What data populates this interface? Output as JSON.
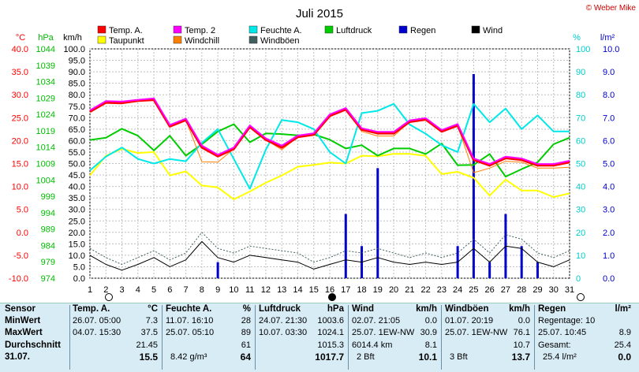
{
  "title": "Juli 2015",
  "copyright": "© Weber Mike",
  "legend": [
    {
      "name": "Temp. A.",
      "color": "#ff0000"
    },
    {
      "name": "Temp. 2",
      "color": "#ff00ff"
    },
    {
      "name": "Feuchte A.",
      "color": "#00e8e8"
    },
    {
      "name": "Luftdruck",
      "color": "#00cc00"
    },
    {
      "name": "Regen",
      "color": "#0000cc"
    },
    {
      "name": "Wind",
      "color": "#000000"
    },
    {
      "name": "Taupunkt",
      "color": "#ffff00"
    },
    {
      "name": "Windchill",
      "color": "#ff8000"
    },
    {
      "name": "Windböen",
      "color": "#406060"
    }
  ],
  "axis_units": {
    "temp": "°C",
    "pressure": "hPa",
    "wind": "km/h",
    "humidity": "%",
    "rain": "l/m²"
  },
  "chart_data": {
    "type": "line",
    "title": "Juli 2015",
    "x": [
      1,
      2,
      3,
      4,
      5,
      6,
      7,
      8,
      9,
      10,
      11,
      12,
      13,
      14,
      15,
      16,
      17,
      18,
      19,
      20,
      21,
      22,
      23,
      24,
      25,
      26,
      27,
      28,
      29,
      30,
      31
    ],
    "axes": {
      "temp": {
        "unit": "°C",
        "range": [
          -10,
          40
        ],
        "ticks": [
          "40.0",
          "35.0",
          "30.0",
          "25.0",
          "20.0",
          "15.0",
          "10.0",
          "5.0",
          "0.0",
          "-5.0",
          "-10.0"
        ]
      },
      "pressure": {
        "unit": "hPa",
        "range": [
          974,
          1044
        ],
        "ticks": [
          "1044",
          "1039",
          "1034",
          "1029",
          "1024",
          "1019",
          "1014",
          "1009",
          "1004",
          "999",
          "994",
          "989",
          "984",
          "979",
          "974"
        ]
      },
      "wind": {
        "unit": "km/h",
        "range": [
          0,
          100
        ],
        "ticks": [
          "100.0",
          "95.0",
          "90.0",
          "85.0",
          "80.0",
          "75.0",
          "70.0",
          "65.0",
          "60.0",
          "55.0",
          "50.0",
          "45.0",
          "40.0",
          "35.0",
          "30.0",
          "25.0",
          "20.0",
          "15.0",
          "10.0",
          "5.0",
          "0.0"
        ]
      },
      "humidity": {
        "unit": "%",
        "range": [
          0,
          100
        ],
        "ticks": [
          "100",
          "90",
          "80",
          "70",
          "60",
          "50",
          "40",
          "30",
          "20",
          "10",
          "0"
        ]
      },
      "rain": {
        "unit": "l/m²",
        "range": [
          0,
          10
        ],
        "ticks": [
          "10.0",
          "9.0",
          "8.0",
          "7.0",
          "6.0",
          "5.0",
          "4.0",
          "3.0",
          "2.0",
          "1.0",
          "0.0"
        ]
      }
    },
    "series": [
      {
        "name": "Temp. A.",
        "axis": "temp",
        "color": "#ff0000",
        "values": [
          26.3,
          28.3,
          28.2,
          28.7,
          28.9,
          23.1,
          24.5,
          18.5,
          16.6,
          18.2,
          23.0,
          20.2,
          18.5,
          20.8,
          21.3,
          25.4,
          26.8,
          22.4,
          21.6,
          21.6,
          24.1,
          24.6,
          22.0,
          23.3,
          15.8,
          14.6,
          16.2,
          15.8,
          14.6,
          14.6,
          15.3
        ]
      },
      {
        "name": "Temp. 2",
        "axis": "temp",
        "color": "#ff00ff",
        "values": [
          26.6,
          28.6,
          28.5,
          28.9,
          29.2,
          23.4,
          24.8,
          18.9,
          16.9,
          18.5,
          23.3,
          20.5,
          18.9,
          21.1,
          21.6,
          25.7,
          27.1,
          22.7,
          21.9,
          21.9,
          24.4,
          24.9,
          22.3,
          23.6,
          16.1,
          14.9,
          16.5,
          16.1,
          14.9,
          14.9,
          15.6
        ]
      },
      {
        "name": "Taupunkt",
        "axis": "temp",
        "color": "#ffff00",
        "values": [
          12.4,
          16.7,
          18.2,
          17.3,
          17.5,
          12.4,
          13.3,
          10.2,
          9.8,
          7.2,
          8.9,
          10.8,
          12.4,
          14.3,
          14.7,
          15.2,
          15.0,
          16.7,
          16.6,
          17.1,
          17.1,
          16.7,
          12.7,
          13.2,
          11.9,
          8.0,
          11.5,
          9.1,
          9.1,
          7.7,
          8.5
        ]
      },
      {
        "name": "Windchill",
        "axis": "temp",
        "color": "#ff8000",
        "values": [
          26.3,
          28.3,
          28.2,
          28.7,
          28.9,
          23.1,
          24.5,
          15.4,
          15.3,
          18.2,
          23.0,
          20.2,
          18.0,
          20.8,
          21.3,
          25.4,
          26.8,
          22.0,
          21.0,
          21.0,
          24.1,
          24.6,
          22.0,
          23.3,
          13.0,
          14.0,
          15.5,
          15.3,
          14.0,
          14.0,
          14.2
        ]
      },
      {
        "name": "Feuchte A.",
        "axis": "humidity",
        "color": "#00e8e8",
        "values": [
          47,
          53,
          57,
          52,
          50,
          52,
          51,
          59,
          65,
          52,
          39,
          56,
          69,
          68,
          65,
          55,
          50,
          72,
          73,
          76,
          67,
          63,
          58,
          55,
          76,
          68,
          74,
          65,
          71,
          64,
          64
        ]
      },
      {
        "name": "Luftdruck",
        "axis": "pressure",
        "color": "#00cc00",
        "values": [
          1016.2,
          1016.9,
          1019.6,
          1017.5,
          1013.0,
          1017.5,
          1011.4,
          1014.9,
          1018.8,
          1021.0,
          1015.5,
          1018.2,
          1018.0,
          1017.6,
          1017.9,
          1016.3,
          1013.6,
          1014.6,
          1011.4,
          1013.6,
          1013.6,
          1011.9,
          1015.1,
          1008.5,
          1008.6,
          1011.9,
          1005.0,
          1007.3,
          1009.4,
          1014.9,
          1016.9
        ]
      },
      {
        "name": "Wind",
        "axis": "wind",
        "color": "#000000",
        "values": [
          10,
          6,
          3.5,
          6,
          9,
          5,
          8,
          16,
          9,
          7,
          10,
          9,
          8,
          7,
          4,
          6,
          8,
          7,
          9,
          7,
          6,
          7,
          6,
          7,
          13,
          7,
          14,
          13,
          7,
          5,
          8
        ]
      },
      {
        "name": "Windböen",
        "axis": "wind",
        "color": "#406060",
        "values": [
          13,
          9,
          6,
          9,
          12,
          8,
          11,
          20,
          13,
          11,
          14,
          13,
          12,
          11,
          7,
          9,
          12,
          11,
          13,
          11,
          9,
          11,
          9,
          11,
          17,
          11,
          19,
          17,
          11,
          9,
          12
        ]
      },
      {
        "name": "Regen",
        "axis": "rain",
        "type": "bar",
        "color": "#0000cc",
        "values": [
          0,
          0,
          0,
          0,
          0,
          0,
          0,
          0,
          0.7,
          0,
          0,
          0,
          0,
          0,
          0,
          0,
          2.8,
          1.4,
          4.8,
          0,
          0,
          0,
          0,
          1.4,
          8.9,
          0.7,
          2.8,
          1.4,
          0.7,
          0,
          0
        ]
      }
    ]
  },
  "stats": {
    "sensor": {
      "header": "Sensor",
      "rows": [
        "MinWert",
        "MaxWert",
        "Durchschnitt",
        "31.07."
      ]
    },
    "temp": {
      "header": "Temp. A.",
      "unit": "°C",
      "min_time": "26.07.  05:00",
      "min_val": "7.3",
      "max_time": "04.07.  15:30",
      "max_val": "37.5",
      "avg": "21.45",
      "today": "15.5"
    },
    "humidity": {
      "header": "Feuchte A.",
      "unit": "%",
      "min_time": "11.07.  16:10",
      "min_val": "28",
      "max_time": "25.07.  05:10",
      "max_val": "89",
      "avg": "61",
      "today_extra": "8.42 g/m³",
      "today": "64"
    },
    "pressure": {
      "header": "Luftdruck",
      "unit": "hPa",
      "min_time": "24.07.  21:30",
      "min_val": "1003.6",
      "max_time": "10.07.  03:30",
      "max_val": "1024.1",
      "avg": "1015.3",
      "today": "1017.7"
    },
    "wind": {
      "header": "Wind",
      "unit": "km/h",
      "min_time": "02.07.  21:05",
      "min_val": "0.0",
      "max_time": "25.07.  1EW-NW",
      "max_val": "30.9",
      "avg_extra": "6014.4 km",
      "avg": "8.1",
      "today_extra": "2 Bft",
      "today": "10.1"
    },
    "gusts": {
      "header": "Windböen",
      "unit": "km/h",
      "min_time": "01.07.  20:19",
      "min_val": "0.0",
      "max_time": "25.07.  1EW-NW",
      "max_val": "76.1",
      "avg": "10.7",
      "today_extra": "3 Bft",
      "today": "13.7"
    },
    "rain": {
      "header": "Regen",
      "unit": "l/m²",
      "r1_label": "Regentage:",
      "r1_val": "10",
      "r2_label": "25.07.  10:45",
      "r2_val": "8.9",
      "r3_label": "Gesamt:",
      "r3_val": "25.4",
      "r4_label": "25.4 l/m²",
      "r4_val": "0.0"
    }
  }
}
